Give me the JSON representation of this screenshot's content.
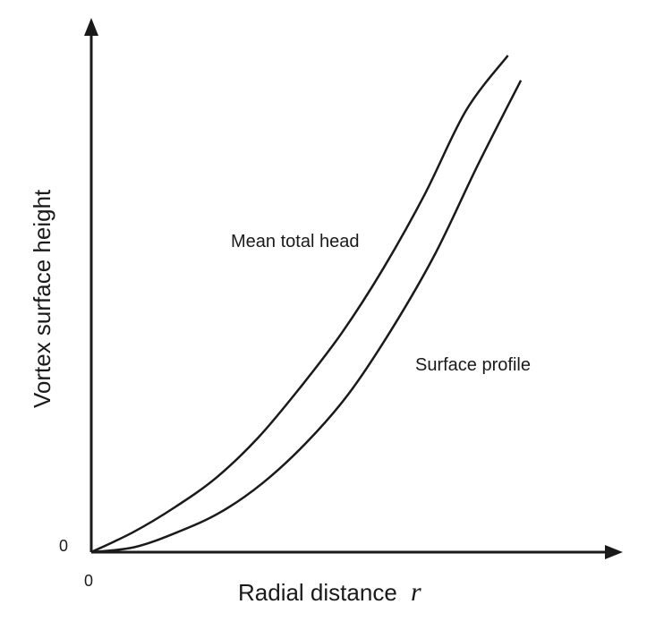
{
  "chart_data": {
    "type": "line",
    "title": "",
    "xlabel": "Radial distance",
    "xlabel_symbol": "r",
    "ylabel": "Vortex surface height",
    "x_origin_tick": "0",
    "y_origin_tick": "0",
    "xlim": [
      0,
      1
    ],
    "ylim": [
      0,
      1
    ],
    "grid": false,
    "series": [
      {
        "label": "Mean total head",
        "x": [
          0,
          0.1,
          0.2,
          0.3,
          0.4,
          0.5,
          0.6,
          0.7,
          0.8,
          0.9,
          1.0
        ],
        "y": [
          0,
          0.04,
          0.09,
          0.15,
          0.23,
          0.33,
          0.44,
          0.57,
          0.72,
          0.89,
          1.0
        ]
      },
      {
        "label": "Surface profile",
        "x": [
          0,
          0.1,
          0.2,
          0.3,
          0.4,
          0.5,
          0.6,
          0.7,
          0.8,
          0.9,
          1.0
        ],
        "y": [
          0,
          0.01,
          0.04,
          0.08,
          0.14,
          0.22,
          0.32,
          0.45,
          0.6,
          0.78,
          0.95
        ]
      }
    ]
  }
}
